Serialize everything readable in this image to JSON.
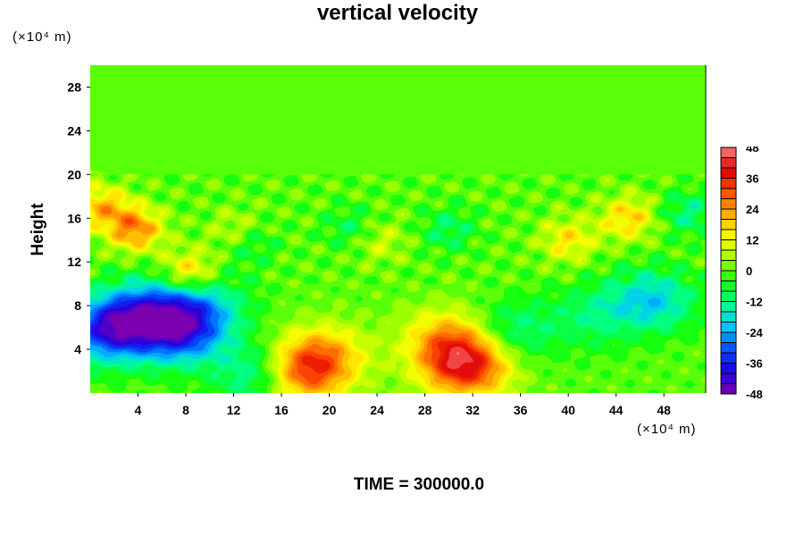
{
  "chart_data": {
    "type": "heatmap",
    "title": "vertical velocity",
    "ylabel": "Height",
    "xunit": "(×10⁴ m)",
    "yunit": "(×10⁴ m)",
    "footer": "TIME = 300000.0",
    "xlim": [
      0,
      51.5
    ],
    "ylim": [
      0,
      30
    ],
    "xticks": [
      4,
      8,
      12,
      16,
      20,
      24,
      28,
      32,
      36,
      40,
      44,
      48
    ],
    "yticks": [
      4,
      8,
      12,
      16,
      20,
      24,
      28
    ],
    "colorbar": {
      "min": -48,
      "max": 48,
      "ticks": [
        48,
        36,
        24,
        12,
        0,
        -12,
        -24,
        -36,
        -48
      ],
      "colormap": [
        "#7a00b0",
        "#2000e0",
        "#0050ff",
        "#00c8ff",
        "#00ff90",
        "#10ff10",
        "#a0ff00",
        "#ffff00",
        "#ffb000",
        "#ff5000",
        "#e00000",
        "#ff8080"
      ]
    },
    "field_features": [
      {
        "x": 31.5,
        "y": 2.5,
        "value": 38
      },
      {
        "x": 30.0,
        "y": 5.0,
        "value": 20
      },
      {
        "x": 17.5,
        "y": 1.8,
        "value": 32
      },
      {
        "x": 19.5,
        "y": 3.5,
        "value": 18
      },
      {
        "x": 3.8,
        "y": 15.0,
        "value": 26
      },
      {
        "x": 8.2,
        "y": 11.0,
        "value": 20
      },
      {
        "x": 12.5,
        "y": 14.5,
        "value": 20
      },
      {
        "x": 45.0,
        "y": 16.0,
        "value": 18
      },
      {
        "x": 1.0,
        "y": 17.0,
        "value": 20
      },
      {
        "x": 40.0,
        "y": 14.0,
        "value": 15
      },
      {
        "x": 24.0,
        "y": 14.0,
        "value": 10
      },
      {
        "x": 7.5,
        "y": 5.5,
        "value": -32
      },
      {
        "x": 6.5,
        "y": 8.0,
        "value": -18
      },
      {
        "x": 1.5,
        "y": 5.5,
        "value": -28
      },
      {
        "x": 3.0,
        "y": 7.0,
        "value": -20
      },
      {
        "x": 14.5,
        "y": 1.8,
        "value": -22
      },
      {
        "x": 35.0,
        "y": 5.5,
        "value": -14
      },
      {
        "x": 13.0,
        "y": 14.0,
        "value": -20
      },
      {
        "x": 47.0,
        "y": 8.5,
        "value": -20
      },
      {
        "x": 10.0,
        "y": 8.0,
        "value": -12
      },
      {
        "x": 42.0,
        "y": 7.0,
        "value": -10
      },
      {
        "x": 22.0,
        "y": 15.0,
        "value": -10
      },
      {
        "x": 30.0,
        "y": 15.0,
        "value": -10
      },
      {
        "x": 50.0,
        "y": 16.5,
        "value": -12
      }
    ]
  }
}
